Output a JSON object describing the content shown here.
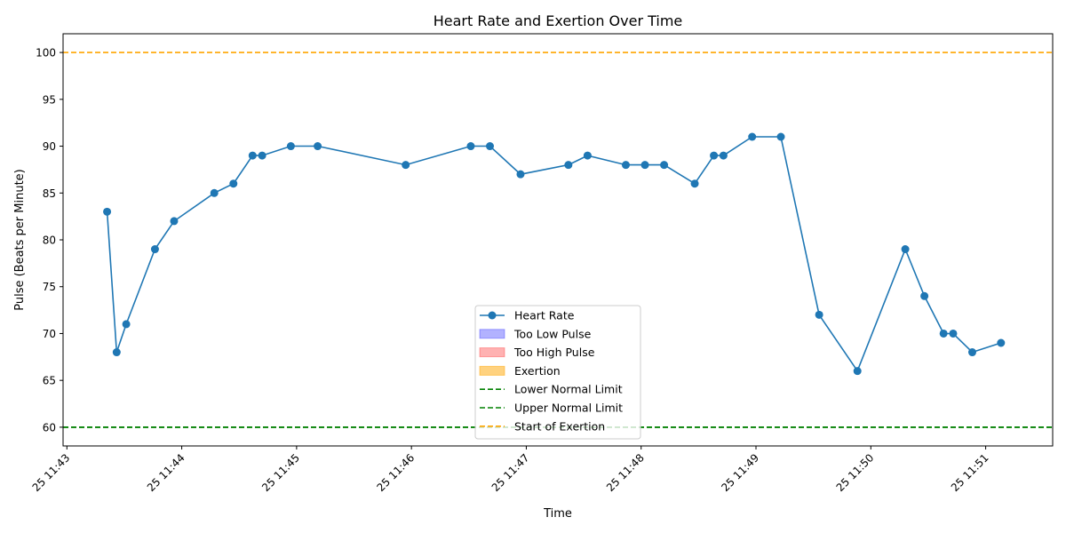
{
  "chart_data": {
    "type": "line",
    "title": "Heart Rate and Exertion Over Time",
    "xlabel": "Time",
    "ylabel": "Pulse (Beats per Minute)",
    "xlim": [
      "25 11:42:58",
      "25 11:51:35"
    ],
    "ylim": [
      58,
      102
    ],
    "yticks": [
      60,
      65,
      70,
      75,
      80,
      85,
      90,
      95,
      100
    ],
    "xticks": [
      {
        "t": "25 11:43:00",
        "label": "25 11:43"
      },
      {
        "t": "25 11:44:00",
        "label": "25 11:44"
      },
      {
        "t": "25 11:45:00",
        "label": "25 11:45"
      },
      {
        "t": "25 11:46:00",
        "label": "25 11:46"
      },
      {
        "t": "25 11:47:00",
        "label": "25 11:47"
      },
      {
        "t": "25 11:48:00",
        "label": "25 11:48"
      },
      {
        "t": "25 11:49:00",
        "label": "25 11:49"
      },
      {
        "t": "25 11:50:00",
        "label": "25 11:50"
      },
      {
        "t": "25 11:51:00",
        "label": "25 11:51"
      }
    ],
    "grid": false,
    "legend_position": "lower-center",
    "series": [
      {
        "name": "Heart Rate",
        "color": "#1f77b4",
        "marker": "circle",
        "x": [
          "25 11:43:21",
          "25 11:43:26",
          "25 11:43:31",
          "25 11:43:46",
          "25 11:43:56",
          "25 11:44:17",
          "25 11:44:27",
          "25 11:44:37",
          "25 11:44:42",
          "25 11:44:57",
          "25 11:45:11",
          "25 11:45:57",
          "25 11:46:31",
          "25 11:46:41",
          "25 11:46:57",
          "25 11:47:22",
          "25 11:47:32",
          "25 11:47:52",
          "25 11:48:02",
          "25 11:48:12",
          "25 11:48:28",
          "25 11:48:38",
          "25 11:48:43",
          "25 11:48:58",
          "25 11:49:13",
          "25 11:49:33",
          "25 11:49:53",
          "25 11:50:18",
          "25 11:50:28",
          "25 11:50:38",
          "25 11:50:43",
          "25 11:50:53",
          "25 11:51:08"
        ],
        "values": [
          83,
          68,
          71,
          79,
          82,
          85,
          86,
          89,
          89,
          90,
          90,
          88,
          90,
          90,
          87,
          88,
          89,
          88,
          88,
          88,
          86,
          89,
          89,
          91,
          91,
          72,
          66,
          79,
          74,
          70,
          70,
          68,
          69
        ]
      }
    ],
    "reference_lines": [
      {
        "name": "Lower Normal Limit",
        "y": 60,
        "color": "#008000",
        "style": "dashed"
      },
      {
        "name": "Upper Normal Limit",
        "y": 60,
        "color": "#008000",
        "style": "dashed"
      },
      {
        "name": "Start of Exertion",
        "y": 100,
        "color": "#ffa500",
        "style": "dashed"
      }
    ],
    "regions": [
      {
        "name": "Too Low Pulse",
        "color": "#0000ff",
        "opacity": 0.3
      },
      {
        "name": "Too High Pulse",
        "color": "#ff0000",
        "opacity": 0.3
      },
      {
        "name": "Exertion",
        "color": "#ffa500",
        "opacity": 0.5
      }
    ],
    "legend": [
      "Heart Rate",
      "Too Low Pulse",
      "Too High Pulse",
      "Exertion",
      "Lower Normal Limit",
      "Upper Normal Limit",
      "Start of Exertion"
    ]
  }
}
